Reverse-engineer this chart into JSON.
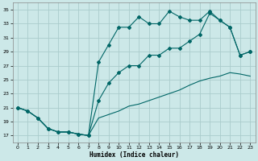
{
  "xlabel": "Humidex (Indice chaleur)",
  "ylabel": "",
  "bg_color": "#cce8e8",
  "grid_color": "#aacccc",
  "line_color": "#006666",
  "xlim": [
    -0.5,
    23.5
  ],
  "ylim": [
    16,
    36
  ],
  "yticks": [
    17,
    19,
    21,
    23,
    25,
    27,
    29,
    31,
    33,
    35
  ],
  "xticks": [
    0,
    1,
    2,
    3,
    4,
    5,
    6,
    7,
    8,
    9,
    10,
    11,
    12,
    13,
    14,
    15,
    16,
    17,
    18,
    19,
    20,
    21,
    22,
    23
  ],
  "line1_x": [
    0,
    1,
    2,
    3,
    4,
    5,
    6,
    7,
    8,
    9,
    10,
    11,
    12,
    13,
    14,
    15,
    16,
    17,
    18,
    19,
    20,
    21,
    22,
    23
  ],
  "line1_y": [
    21.0,
    20.5,
    19.5,
    18.0,
    17.5,
    17.5,
    17.2,
    17.0,
    27.5,
    30.0,
    32.5,
    32.5,
    34.0,
    33.0,
    33.0,
    34.8,
    34.0,
    33.5,
    33.5,
    34.8,
    33.5,
    32.5,
    28.5,
    29.0
  ],
  "line2_x": [
    0,
    1,
    2,
    3,
    4,
    5,
    6,
    7,
    8,
    9,
    10,
    11,
    12,
    13,
    14,
    15,
    16,
    17,
    18,
    19,
    20,
    21,
    22,
    23
  ],
  "line2_y": [
    21.0,
    20.5,
    19.5,
    18.0,
    17.5,
    17.5,
    17.2,
    17.0,
    22.0,
    24.5,
    26.0,
    27.0,
    27.0,
    28.5,
    28.5,
    29.5,
    29.5,
    30.5,
    31.5,
    34.5,
    33.5,
    32.5,
    28.5,
    29.0
  ],
  "line3_x": [
    0,
    1,
    2,
    3,
    4,
    5,
    6,
    7,
    8,
    9,
    10,
    11,
    12,
    13,
    14,
    15,
    16,
    17,
    18,
    19,
    20,
    21,
    22,
    23
  ],
  "line3_y": [
    21.0,
    20.5,
    19.5,
    18.0,
    17.5,
    17.5,
    17.2,
    17.0,
    19.5,
    20.0,
    20.5,
    21.2,
    21.5,
    22.0,
    22.5,
    23.0,
    23.5,
    24.2,
    24.8,
    25.2,
    25.5,
    26.0,
    25.8,
    25.5
  ]
}
